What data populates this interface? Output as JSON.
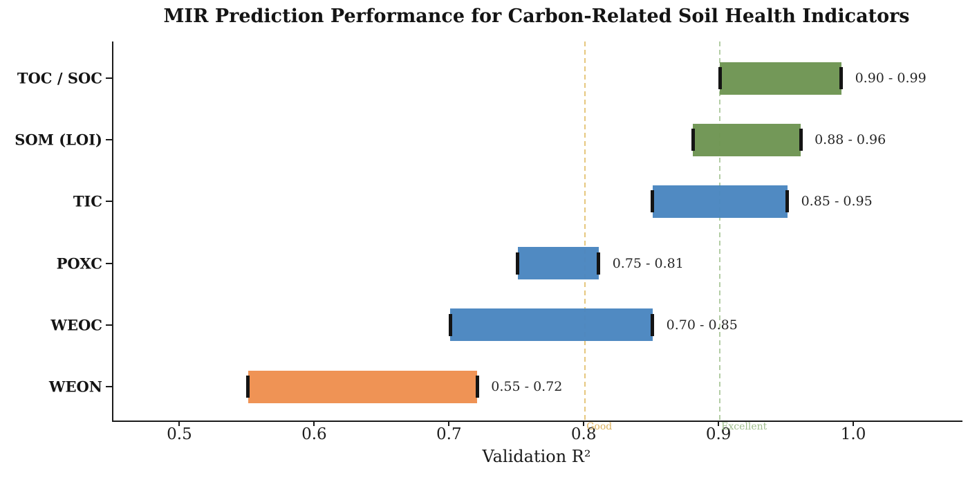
{
  "chart_data": {
    "type": "bar",
    "orientation": "horizontal_range",
    "title": "MIR Prediction Performance for Carbon-Related Soil Health Indicators",
    "xlabel": "Validation R²",
    "categories": [
      "TOC / SOC",
      "SOM (LOI)",
      "TIC",
      "POXC",
      "WEOC",
      "WEON"
    ],
    "series": [
      {
        "name": "TOC / SOC",
        "low": 0.9,
        "high": 0.99,
        "range_label": "0.90 - 0.99",
        "color": "green"
      },
      {
        "name": "SOM (LOI)",
        "low": 0.88,
        "high": 0.96,
        "range_label": "0.88 - 0.96",
        "color": "green"
      },
      {
        "name": "TIC",
        "low": 0.85,
        "high": 0.95,
        "range_label": "0.85 - 0.95",
        "color": "blue"
      },
      {
        "name": "POXC",
        "low": 0.75,
        "high": 0.81,
        "range_label": "0.75 - 0.81",
        "color": "blue"
      },
      {
        "name": "WEOC",
        "low": 0.7,
        "high": 0.85,
        "range_label": "0.70 - 0.85",
        "color": "blue"
      },
      {
        "name": "WEON",
        "low": 0.55,
        "high": 0.72,
        "range_label": "0.55 - 0.72",
        "color": "orange"
      }
    ],
    "colors": {
      "green": "#6e9553",
      "blue": "#4a86c0",
      "orange": "#ee9050",
      "error_cap": "#141414"
    },
    "thresholds": [
      {
        "value": 0.8,
        "label": "Good",
        "line_color": "#e6c77e",
        "text_color": "#ddb25f"
      },
      {
        "value": 0.9,
        "label": "Excellent",
        "line_color": "#b3cda4",
        "text_color": "#9fbe8c"
      }
    ],
    "x_ticks": [
      0.5,
      0.6,
      0.7,
      0.8,
      0.9,
      1.0
    ],
    "x_tick_labels": [
      "0.5",
      "0.6",
      "0.7",
      "0.8",
      "0.9",
      "1.0"
    ],
    "xlim": [
      0.45,
      1.08
    ],
    "grid": false,
    "legend": null
  }
}
